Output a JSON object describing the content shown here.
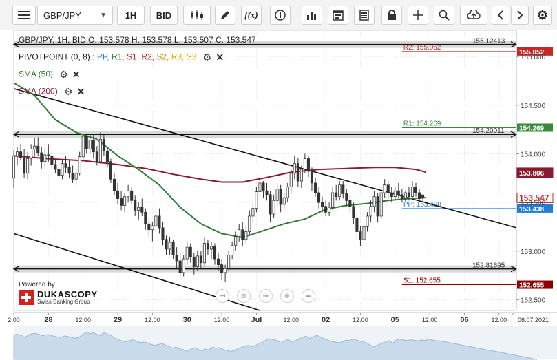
{
  "toolbar": {
    "symbol": "GBP/JPY",
    "timeframe": "1H",
    "price_side": "BID",
    "icons": [
      "menu-icon",
      "candles-icon",
      "pencil-icon",
      "fx-icon",
      "info-icon",
      "volume-bars-icon",
      "calendar-icon",
      "report-icon",
      "lock-icon",
      "crosshair-icon",
      "zoom-icon",
      "cloud-upload-icon",
      "prev-icon",
      "next-icon",
      "gear-icon"
    ]
  },
  "header": {
    "ohlc": "GBP/JPY, 1H, BID   O. 153.578 H. 153.578 L. 153.507 C. 153.547"
  },
  "indicators": {
    "pivot": {
      "name": "PIVOTPOINT (0, 8)",
      "sep": " : ",
      "levels": [
        {
          "label": "PP",
          "color": "#1f7fd6"
        },
        {
          "label": "R1",
          "color": "#3a8a3a"
        },
        {
          "label": "S1",
          "color": "#c62828"
        },
        {
          "label": "R2",
          "color": "#c62828"
        },
        {
          "label": "S2",
          "color": "#e08a00"
        },
        {
          "label": "R3",
          "color": "#e0b000"
        },
        {
          "label": "S3",
          "color": "#e0b000"
        }
      ]
    },
    "sma50": {
      "label": "SMA (50)",
      "color": "#2e7d32"
    },
    "sma200": {
      "label": "SMA (200)",
      "color": "#8b1a2e"
    }
  },
  "branding": {
    "powered_by": "Powered by",
    "name": "DUKASCOPY",
    "tagline": "Swiss Banking Group"
  },
  "chart_data": {
    "type": "candlestick",
    "symbol": "GBP/JPY",
    "timeframe": "1H",
    "y_range": [
      152.39,
      155.15
    ],
    "y_ticks": [
      {
        "value": 155.0,
        "label": "155.000"
      },
      {
        "value": 154.5,
        "label": "154.500"
      },
      {
        "value": 154.0,
        "label": "154.000"
      },
      {
        "value": 153.5,
        "label": "153.500"
      },
      {
        "value": 153.0,
        "label": "153.000"
      },
      {
        "value": 152.5,
        "label": "152.500"
      }
    ],
    "x_ticks": [
      {
        "t": 0,
        "label": "2:00"
      },
      {
        "t": 10,
        "label": "28",
        "bold": true
      },
      {
        "t": 20,
        "label": "12:00"
      },
      {
        "t": 30,
        "label": "29",
        "bold": true
      },
      {
        "t": 40,
        "label": "12:00"
      },
      {
        "t": 50,
        "label": "30",
        "bold": true
      },
      {
        "t": 60,
        "label": "12:00"
      },
      {
        "t": 70,
        "label": "Jul",
        "bold": true
      },
      {
        "t": 80,
        "label": "12:00"
      },
      {
        "t": 90,
        "label": "02",
        "bold": true
      },
      {
        "t": 100,
        "label": "12:00"
      },
      {
        "t": 110,
        "label": "05",
        "bold": true
      },
      {
        "t": 120,
        "label": "12:00"
      },
      {
        "t": 130,
        "label": "06",
        "bold": true
      },
      {
        "t": 140,
        "label": "12:00"
      },
      {
        "t": 144,
        "label": "06.07.2021"
      }
    ],
    "x_range": [
      0,
      145
    ],
    "horizontal_levels": [
      {
        "value": 155.124,
        "label": "155.12413",
        "band": true
      },
      {
        "value": 154.20011,
        "label": "154.20011",
        "band": true
      },
      {
        "value": 152.81695,
        "label": "152.81695",
        "band": true
      }
    ],
    "pivot_lines": [
      {
        "name": "R2",
        "value": 155.052,
        "label": "R2: 155.052",
        "price_label": "155.052",
        "color": "#c62828"
      },
      {
        "name": "R1",
        "value": 154.269,
        "label": "R1: 154.269",
        "price_label": "154.269",
        "color": "#3a8a3a"
      },
      {
        "name": "PP",
        "value": 153.438,
        "label": "PP: 153.438",
        "price_label": "153.438",
        "color": "#1f7fd6"
      },
      {
        "name": "S1",
        "value": 152.655,
        "label": "S1: 152.655",
        "price_label": "152.655",
        "color": "#8b0000"
      }
    ],
    "price_markers": [
      {
        "value": 153.806,
        "label": "153.806",
        "color": "#8b1a2e"
      },
      {
        "value": 153.547,
        "label": "153.547",
        "color": "#c62828",
        "current": true
      }
    ],
    "trendlines": [
      {
        "t1": 0,
        "v1": 154.67,
        "t2": 145,
        "v2": 153.24
      },
      {
        "t1": 0,
        "v1": 153.18,
        "t2": 71,
        "v2": 152.39
      }
    ],
    "sma200": [
      [
        0,
        153.98
      ],
      [
        10,
        153.95
      ],
      [
        20,
        153.93
      ],
      [
        30,
        153.89
      ],
      [
        38,
        153.85
      ],
      [
        46,
        153.79
      ],
      [
        54,
        153.74
      ],
      [
        60,
        153.71
      ],
      [
        66,
        153.71
      ],
      [
        72,
        153.75
      ],
      [
        80,
        153.81
      ],
      [
        88,
        153.84
      ],
      [
        96,
        153.85
      ],
      [
        104,
        153.86
      ],
      [
        110,
        153.86
      ],
      [
        116,
        153.84
      ],
      [
        119,
        153.81
      ]
    ],
    "sma50": [
      [
        0,
        154.73
      ],
      [
        6,
        154.6
      ],
      [
        12,
        154.35
      ],
      [
        18,
        154.22
      ],
      [
        24,
        154.15
      ],
      [
        30,
        153.98
      ],
      [
        36,
        153.84
      ],
      [
        42,
        153.68
      ],
      [
        48,
        153.45
      ],
      [
        54,
        153.28
      ],
      [
        60,
        153.18
      ],
      [
        66,
        153.14
      ],
      [
        72,
        153.21
      ],
      [
        78,
        153.28
      ],
      [
        84,
        153.33
      ],
      [
        90,
        153.43
      ],
      [
        96,
        153.47
      ],
      [
        102,
        153.49
      ],
      [
        108,
        153.52
      ],
      [
        114,
        153.54
      ],
      [
        119,
        153.55
      ]
    ],
    "candles": [
      [
        0,
        153.75,
        154.03,
        153.65,
        153.98
      ],
      [
        1,
        153.98,
        154.07,
        153.88,
        154.02
      ],
      [
        2,
        154.02,
        154.1,
        153.93,
        153.96
      ],
      [
        3,
        153.96,
        154.05,
        153.75,
        153.8
      ],
      [
        4,
        153.8,
        154.02,
        153.74,
        153.95
      ],
      [
        5,
        153.95,
        154.1,
        153.88,
        154.05
      ],
      [
        6,
        154.05,
        154.16,
        153.97,
        154.08
      ],
      [
        7,
        154.08,
        154.17,
        153.98,
        154.01
      ],
      [
        8,
        154.01,
        154.07,
        153.85,
        153.92
      ],
      [
        9,
        153.92,
        154.05,
        153.86,
        153.99
      ],
      [
        10,
        153.99,
        154.1,
        153.92,
        153.98
      ],
      [
        11,
        153.98,
        154.02,
        153.85,
        153.89
      ],
      [
        12,
        153.89,
        153.95,
        153.8,
        153.84
      ],
      [
        13,
        153.84,
        153.92,
        153.72,
        153.78
      ],
      [
        14,
        153.78,
        153.94,
        153.74,
        153.9
      ],
      [
        15,
        153.9,
        153.98,
        153.8,
        153.86
      ],
      [
        16,
        153.86,
        153.93,
        153.75,
        153.8
      ],
      [
        17,
        153.8,
        153.88,
        153.7,
        153.74
      ],
      [
        18,
        153.74,
        153.84,
        153.68,
        153.8
      ],
      [
        19,
        153.8,
        154.02,
        153.78,
        153.97
      ],
      [
        20,
        153.97,
        154.2,
        153.94,
        154.18
      ],
      [
        21,
        154.18,
        154.21,
        154.0,
        154.05
      ],
      [
        22,
        154.05,
        154.2,
        154.0,
        154.14
      ],
      [
        23,
        154.14,
        154.2,
        153.95,
        154.02
      ],
      [
        24,
        154.02,
        154.08,
        153.88,
        153.92
      ],
      [
        25,
        153.92,
        154.22,
        153.9,
        154.15
      ],
      [
        26,
        154.15,
        154.2,
        153.98,
        154.03
      ],
      [
        27,
        154.03,
        154.06,
        153.86,
        153.92
      ],
      [
        28,
        153.92,
        153.95,
        153.7,
        153.74
      ],
      [
        29,
        153.74,
        153.8,
        153.58,
        153.62
      ],
      [
        30,
        153.62,
        153.7,
        153.48,
        153.54
      ],
      [
        31,
        153.54,
        153.62,
        153.42,
        153.47
      ],
      [
        32,
        153.47,
        153.6,
        153.4,
        153.56
      ],
      [
        33,
        153.56,
        153.68,
        153.5,
        153.62
      ],
      [
        34,
        153.62,
        153.66,
        153.48,
        153.52
      ],
      [
        35,
        153.52,
        153.57,
        153.36,
        153.42
      ],
      [
        36,
        153.42,
        153.5,
        153.32,
        153.45
      ],
      [
        37,
        153.45,
        153.54,
        153.36,
        153.4
      ],
      [
        38,
        153.4,
        153.44,
        153.22,
        153.28
      ],
      [
        39,
        153.28,
        153.34,
        153.14,
        153.22
      ],
      [
        40,
        153.22,
        153.3,
        153.1,
        153.26
      ],
      [
        41,
        153.26,
        153.42,
        153.2,
        153.36
      ],
      [
        42,
        153.36,
        153.44,
        153.18,
        153.24
      ],
      [
        43,
        153.24,
        153.3,
        153.06,
        153.12
      ],
      [
        44,
        153.12,
        153.16,
        152.96,
        153.02
      ],
      [
        45,
        153.02,
        153.14,
        152.96,
        153.09
      ],
      [
        46,
        153.09,
        153.12,
        152.92,
        152.96
      ],
      [
        47,
        152.96,
        153.04,
        152.82,
        152.9
      ],
      [
        48,
        152.9,
        152.98,
        152.72,
        152.78
      ],
      [
        49,
        152.78,
        152.96,
        152.74,
        152.92
      ],
      [
        50,
        152.92,
        153.1,
        152.86,
        153.04
      ],
      [
        51,
        153.04,
        153.08,
        152.88,
        152.94
      ],
      [
        52,
        152.94,
        152.98,
        152.76,
        152.84
      ],
      [
        53,
        152.84,
        153.0,
        152.8,
        152.95
      ],
      [
        54,
        152.95,
        153.0,
        152.82,
        152.88
      ],
      [
        55,
        152.88,
        153.14,
        152.84,
        153.08
      ],
      [
        56,
        153.08,
        153.12,
        152.96,
        153.02
      ],
      [
        57,
        153.02,
        153.1,
        152.92,
        153.05
      ],
      [
        58,
        153.05,
        153.08,
        152.86,
        152.92
      ],
      [
        59,
        152.92,
        152.98,
        152.8,
        152.86
      ],
      [
        60,
        152.86,
        152.92,
        152.7,
        152.78
      ],
      [
        61,
        152.78,
        152.86,
        152.68,
        152.82
      ],
      [
        62,
        152.82,
        153.0,
        152.8,
        152.96
      ],
      [
        63,
        152.96,
        153.1,
        152.92,
        153.06
      ],
      [
        64,
        153.06,
        153.2,
        153.0,
        153.15
      ],
      [
        65,
        153.15,
        153.28,
        153.1,
        153.22
      ],
      [
        66,
        153.22,
        153.3,
        153.05,
        153.12
      ],
      [
        67,
        153.12,
        153.25,
        153.08,
        153.2
      ],
      [
        68,
        153.2,
        153.42,
        153.16,
        153.36
      ],
      [
        69,
        153.36,
        153.5,
        153.3,
        153.44
      ],
      [
        70,
        153.44,
        153.66,
        153.4,
        153.61
      ],
      [
        71,
        153.61,
        153.76,
        153.55,
        153.7
      ],
      [
        72,
        153.7,
        153.72,
        153.55,
        153.62
      ],
      [
        73,
        153.62,
        153.7,
        153.52,
        153.58
      ],
      [
        74,
        153.58,
        153.62,
        153.3,
        153.38
      ],
      [
        75,
        153.38,
        153.58,
        153.34,
        153.52
      ],
      [
        76,
        153.52,
        153.7,
        153.46,
        153.64
      ],
      [
        77,
        153.64,
        153.68,
        153.4,
        153.48
      ],
      [
        78,
        153.48,
        153.6,
        153.44,
        153.55
      ],
      [
        79,
        153.55,
        153.7,
        153.5,
        153.66
      ],
      [
        80,
        153.66,
        153.85,
        153.6,
        153.8
      ],
      [
        81,
        153.8,
        153.98,
        153.74,
        153.9
      ],
      [
        82,
        153.9,
        153.96,
        153.66,
        153.72
      ],
      [
        83,
        153.72,
        153.88,
        153.65,
        153.84
      ],
      [
        84,
        153.84,
        154.0,
        153.8,
        153.95
      ],
      [
        85,
        153.95,
        153.98,
        153.76,
        153.82
      ],
      [
        86,
        153.82,
        153.86,
        153.62,
        153.7
      ],
      [
        87,
        153.7,
        153.76,
        153.56,
        153.6
      ],
      [
        88,
        153.6,
        153.66,
        153.44,
        153.5
      ],
      [
        89,
        153.5,
        153.56,
        153.4,
        153.46
      ],
      [
        90,
        153.46,
        153.52,
        153.36,
        153.4
      ],
      [
        91,
        153.4,
        153.5,
        153.36,
        153.45
      ],
      [
        92,
        153.45,
        153.66,
        153.42,
        153.6
      ],
      [
        93,
        153.6,
        153.68,
        153.52,
        153.56
      ],
      [
        94,
        153.56,
        153.72,
        153.52,
        153.68
      ],
      [
        95,
        153.68,
        153.72,
        153.54,
        153.59
      ],
      [
        96,
        153.59,
        153.64,
        153.46,
        153.52
      ],
      [
        97,
        153.52,
        153.58,
        153.4,
        153.46
      ],
      [
        98,
        153.46,
        153.5,
        153.28,
        153.34
      ],
      [
        99,
        153.34,
        153.38,
        153.12,
        153.2
      ],
      [
        100,
        153.2,
        153.26,
        153.05,
        153.12
      ],
      [
        101,
        153.12,
        153.3,
        153.08,
        153.25
      ],
      [
        102,
        153.25,
        153.4,
        153.2,
        153.36
      ],
      [
        103,
        153.36,
        153.52,
        153.3,
        153.46
      ],
      [
        104,
        153.46,
        153.62,
        153.4,
        153.56
      ],
      [
        105,
        153.56,
        153.6,
        153.3,
        153.36
      ],
      [
        106,
        153.36,
        153.66,
        153.32,
        153.6
      ],
      [
        107,
        153.6,
        153.74,
        153.55,
        153.68
      ],
      [
        108,
        153.68,
        153.72,
        153.54,
        153.6
      ],
      [
        109,
        153.6,
        153.66,
        153.5,
        153.56
      ],
      [
        110,
        153.56,
        153.66,
        153.52,
        153.62
      ],
      [
        111,
        153.62,
        153.7,
        153.55,
        153.58
      ],
      [
        112,
        153.58,
        153.64,
        153.5,
        153.54
      ],
      [
        113,
        153.54,
        153.62,
        153.5,
        153.6
      ],
      [
        114,
        153.6,
        153.66,
        153.52,
        153.56
      ],
      [
        115,
        153.56,
        153.72,
        153.54,
        153.66
      ],
      [
        116,
        153.66,
        153.7,
        153.56,
        153.6
      ],
      [
        117,
        153.6,
        153.64,
        153.5,
        153.54
      ],
      [
        118,
        153.578,
        153.578,
        153.507,
        153.547
      ]
    ]
  }
}
